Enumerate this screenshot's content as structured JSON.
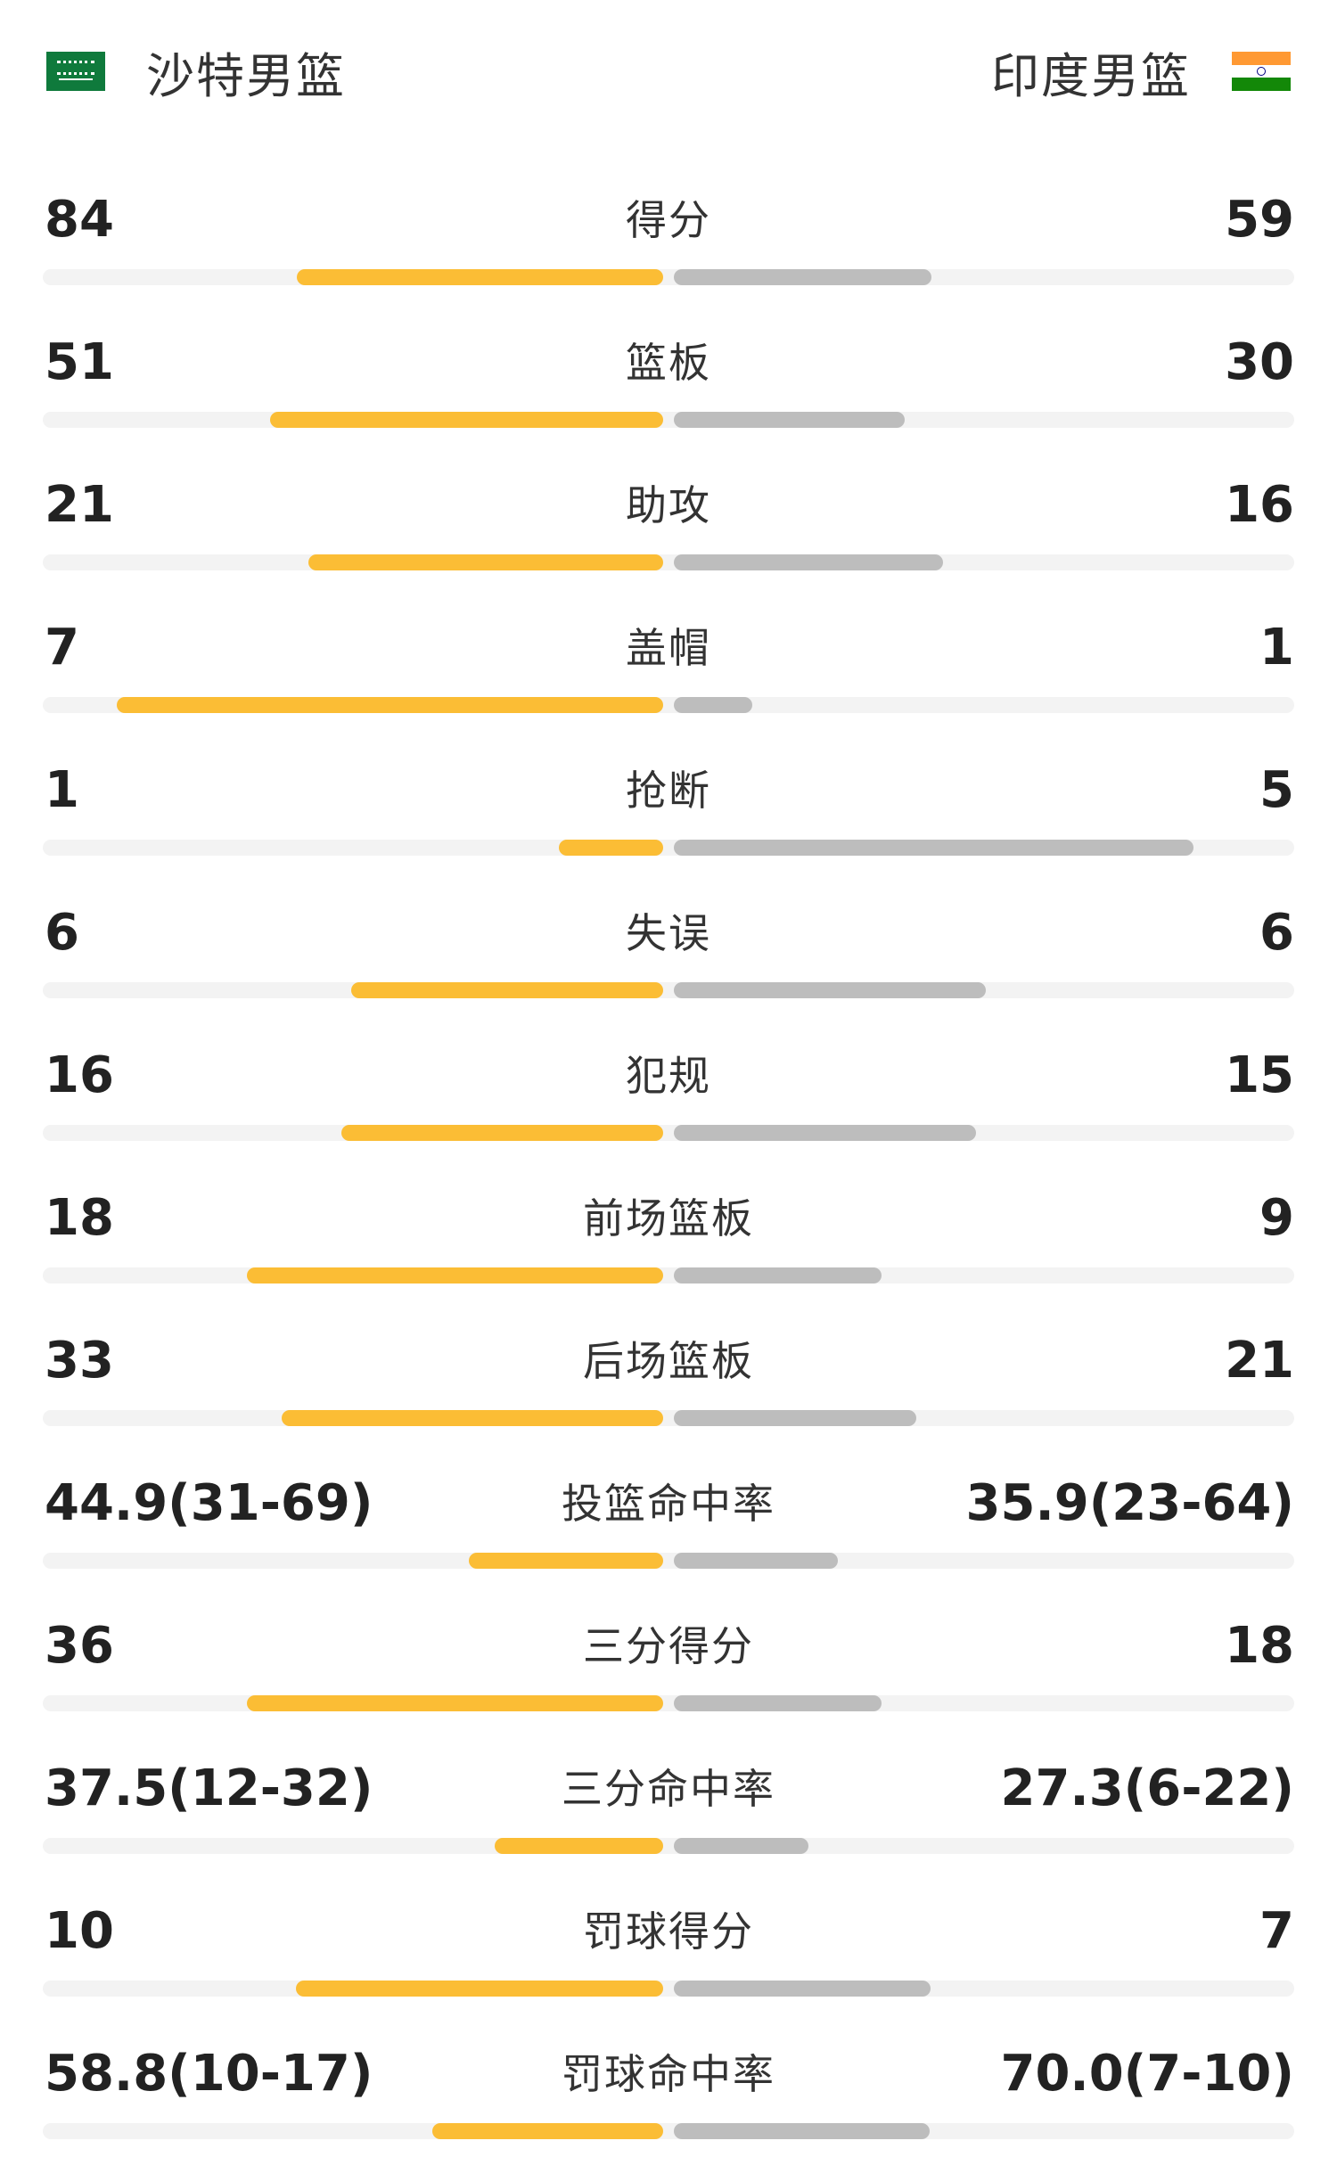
{
  "teams": {
    "left": {
      "name": "沙特男篮",
      "flag_icon": "saudi-arabia-flag-icon"
    },
    "right": {
      "name": "印度男篮",
      "flag_icon": "india-flag-icon"
    }
  },
  "colors": {
    "left_bar": "#fbbd35",
    "right_bar": "#bdbdbd",
    "track": "#f3f3f3"
  },
  "stats": [
    {
      "label": "得分",
      "left": "84",
      "right": "59",
      "left_share": 0.587,
      "right_share": 0.413
    },
    {
      "label": "篮板",
      "left": "51",
      "right": "30",
      "left_share": 0.63,
      "right_share": 0.37
    },
    {
      "label": "助攻",
      "left": "21",
      "right": "16",
      "left_share": 0.568,
      "right_share": 0.432
    },
    {
      "label": "盖帽",
      "left": "7",
      "right": "1",
      "left_share": 0.875,
      "right_share": 0.125
    },
    {
      "label": "抢断",
      "left": "1",
      "right": "5",
      "left_share": 0.167,
      "right_share": 0.833
    },
    {
      "label": "失误",
      "left": "6",
      "right": "6",
      "left_share": 0.5,
      "right_share": 0.5
    },
    {
      "label": "犯规",
      "left": "16",
      "right": "15",
      "left_share": 0.516,
      "right_share": 0.484
    },
    {
      "label": "前场篮板",
      "left": "18",
      "right": "9",
      "left_share": 0.667,
      "right_share": 0.333
    },
    {
      "label": "后场篮板",
      "left": "33",
      "right": "21",
      "left_share": 0.611,
      "right_share": 0.389
    },
    {
      "label": "投篮命中率",
      "left": "44.9(31-69)",
      "right": "35.9(23-64)",
      "left_share": 0.311,
      "right_share": 0.263
    },
    {
      "label": "三分得分",
      "left": "36",
      "right": "18",
      "left_share": 0.667,
      "right_share": 0.333
    },
    {
      "label": "三分命中率",
      "left": "37.5(12-32)",
      "right": "27.3(6-22)",
      "left_share": 0.27,
      "right_share": 0.215
    },
    {
      "label": "罚球得分",
      "left": "10",
      "right": "7",
      "left_share": 0.588,
      "right_share": 0.412
    },
    {
      "label": "罚球命中率",
      "left": "58.8(10-17)",
      "right": "70.0(7-10)",
      "left_share": 0.37,
      "right_share": 0.41
    }
  ]
}
